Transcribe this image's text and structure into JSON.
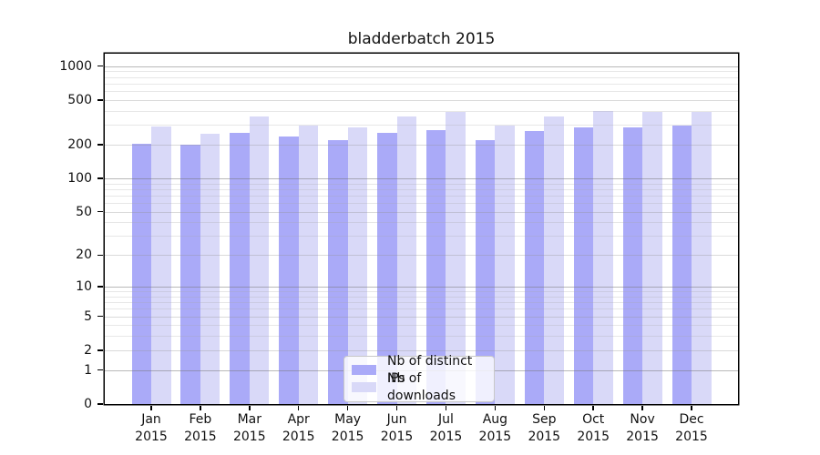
{
  "title": "bladderbatch 2015",
  "colors": {
    "distinct_ips": "#aaaaf8",
    "downloads": "#d9d9f8",
    "axis": "#000000",
    "grid_major": "rgba(115,115,115,0.50)",
    "grid_mid": "rgba(150,150,150,0.35)",
    "grid_minor": "rgba(170,170,170,0.28)",
    "background": "#ffffff"
  },
  "legend": {
    "items": [
      {
        "label": "Nb of distinct IPs",
        "color": "#aaaaf8"
      },
      {
        "label": "Nb of downloads",
        "color": "#d9d9f8"
      }
    ]
  },
  "chart_data": {
    "type": "bar",
    "title": "bladderbatch 2015",
    "categories": [
      "Jan 2015",
      "Feb 2015",
      "Mar 2015",
      "Apr 2015",
      "May 2015",
      "Jun 2015",
      "Jul 2015",
      "Aug 2015",
      "Sep 2015",
      "Oct 2015",
      "Nov 2015",
      "Dec 2015"
    ],
    "series": [
      {
        "name": "Nb of distinct IPs",
        "color": "#aaaaf8",
        "values": [
          203,
          199,
          253,
          235,
          219,
          254,
          271,
          218,
          266,
          285,
          287,
          295
        ]
      },
      {
        "name": "Nb of downloads",
        "color": "#d9d9f8",
        "values": [
          290,
          250,
          358,
          296,
          283,
          357,
          392,
          294,
          355,
          402,
          390,
          392
        ]
      }
    ],
    "xlabel": "",
    "ylabel": "",
    "yscale": "log1p",
    "ylim": [
      0,
      1290
    ],
    "yticks": [
      0,
      1,
      2,
      5,
      10,
      20,
      50,
      100,
      200,
      500,
      1000
    ],
    "ytick_labels": [
      "0",
      "1",
      "2",
      "5",
      "10",
      "20",
      "50",
      "100",
      "200",
      "500",
      "1000"
    ],
    "grid": "horizontal",
    "legend_position": "inside-bottom-center"
  }
}
